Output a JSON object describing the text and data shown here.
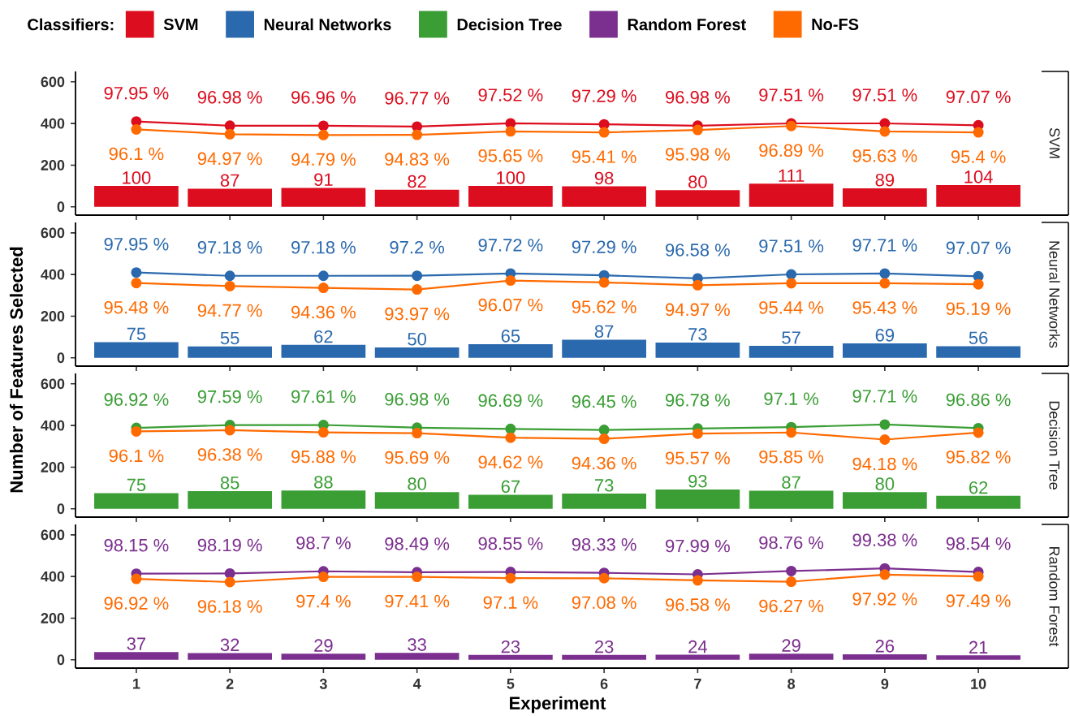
{
  "chart_data": [
    {
      "type": "bar",
      "title": "SVM",
      "ylabel": "Number of Features Selected",
      "legend": "top",
      "legend_title": "Classifiers:",
      "marker": "circle",
      "tick_labels": "y",
      "categories": [
        "1",
        "2",
        "3",
        "4",
        "5",
        "6",
        "7",
        "8",
        "9",
        "10"
      ],
      "ylim": [
        -40,
        650
      ],
      "yticks": [
        0,
        200,
        400,
        600
      ],
      "y2lim": [
        76,
        109.7
      ],
      "series": [
        {
          "name": "SVM",
          "color": "#dc0d1e",
          "values": [
            100,
            87,
            91,
            82,
            100,
            98,
            80,
            111,
            89,
            104
          ],
          "value_labels": [
            "100",
            "87",
            "91",
            "82",
            "100",
            "98",
            "80",
            "111",
            "89",
            "104"
          ]
        },
        {
          "type": "line",
          "axis": "y2",
          "color": "#dc0d1e",
          "values": [
            97.95,
            96.98,
            96.96,
            96.77,
            97.52,
            97.29,
            96.98,
            97.51,
            97.51,
            97.07
          ],
          "value_labels": [
            "97.95 %",
            "96.98 %",
            "96.96 %",
            "96.77 %",
            "97.52 %",
            "97.29 %",
            "96.98 %",
            "97.51 %",
            "97.51 %",
            "97.07 %"
          ]
        },
        {
          "type": "line",
          "axis": "y2",
          "name": "No-FS",
          "color": "#ff6a00",
          "values": [
            96.1,
            94.97,
            94.79,
            94.83,
            95.65,
            95.41,
            95.98,
            96.89,
            95.63,
            95.4
          ],
          "value_labels": [
            "96.1 %",
            "94.97 %",
            "94.79 %",
            "94.83 %",
            "95.65 %",
            "95.41 %",
            "95.98 %",
            "96.89 %",
            "95.63 %",
            "95.4 %"
          ]
        }
      ]
    },
    {
      "type": "bar",
      "title": "Neural Networks",
      "marker": "circle",
      "tick_labels": "y",
      "categories": [
        "1",
        "2",
        "3",
        "4",
        "5",
        "6",
        "7",
        "8",
        "9",
        "10"
      ],
      "ylim": [
        -40,
        650
      ],
      "yticks": [
        0,
        200,
        400,
        600
      ],
      "y2lim": [
        76,
        109.7
      ],
      "series": [
        {
          "name": "Neural Networks",
          "color": "#2a69ad",
          "values": [
            75,
            55,
            62,
            50,
            65,
            87,
            73,
            57,
            69,
            56
          ],
          "value_labels": [
            "75",
            "55",
            "62",
            "50",
            "65",
            "87",
            "73",
            "57",
            "69",
            "56"
          ]
        },
        {
          "type": "line",
          "axis": "y2",
          "color": "#2a69ad",
          "values": [
            97.95,
            97.18,
            97.18,
            97.2,
            97.72,
            97.29,
            96.58,
            97.51,
            97.71,
            97.07
          ],
          "value_labels": [
            "97.95 %",
            "97.18 %",
            "97.18 %",
            "97.2 %",
            "97.72 %",
            "97.29 %",
            "96.58 %",
            "97.51 %",
            "97.71 %",
            "97.07 %"
          ]
        },
        {
          "type": "line",
          "axis": "y2",
          "color": "#ff6a00",
          "values": [
            95.48,
            94.77,
            94.36,
            93.97,
            96.07,
            95.62,
            94.97,
            95.44,
            95.43,
            95.19
          ],
          "value_labels": [
            "95.48 %",
            "94.77 %",
            "94.36 %",
            "93.97 %",
            "96.07 %",
            "95.62 %",
            "94.97 %",
            "95.44 %",
            "95.43 %",
            "95.19 %"
          ]
        }
      ]
    },
    {
      "type": "bar",
      "title": "Decision Tree",
      "marker": "circle",
      "tick_labels": "y",
      "categories": [
        "1",
        "2",
        "3",
        "4",
        "5",
        "6",
        "7",
        "8",
        "9",
        "10"
      ],
      "ylim": [
        -40,
        650
      ],
      "yticks": [
        0,
        200,
        400,
        600
      ],
      "y2lim": [
        76,
        109.7
      ],
      "series": [
        {
          "name": "Decision Tree",
          "color": "#3a9e35",
          "values": [
            75,
            85,
            88,
            80,
            67,
            73,
            93,
            87,
            80,
            62
          ],
          "value_labels": [
            "75",
            "85",
            "88",
            "80",
            "67",
            "73",
            "93",
            "87",
            "80",
            "62"
          ]
        },
        {
          "type": "line",
          "axis": "y2",
          "color": "#3a9e35",
          "values": [
            96.92,
            97.59,
            97.61,
            96.98,
            96.69,
            96.45,
            96.78,
            97.1,
            97.71,
            96.86
          ],
          "value_labels": [
            "96.92 %",
            "97.59 %",
            "97.61 %",
            "96.98 %",
            "96.69 %",
            "96.45 %",
            "96.78 %",
            "97.1 %",
            "97.71 %",
            "96.86 %"
          ]
        },
        {
          "type": "line",
          "axis": "y2",
          "color": "#ff6a00",
          "values": [
            96.1,
            96.38,
            95.88,
            95.69,
            94.62,
            94.36,
            95.57,
            95.85,
            94.18,
            95.82
          ],
          "value_labels": [
            "96.1 %",
            "96.38 %",
            "95.88 %",
            "95.69 %",
            "94.62 %",
            "94.36 %",
            "95.57 %",
            "95.85 %",
            "94.18 %",
            "95.82 %"
          ]
        }
      ]
    },
    {
      "type": "bar",
      "title": "Random Forest",
      "xlabel": "Experiment",
      "marker": "circle",
      "categories": [
        "1",
        "2",
        "3",
        "4",
        "5",
        "6",
        "7",
        "8",
        "9",
        "10"
      ],
      "ylim": [
        -40,
        650
      ],
      "yticks": [
        0,
        200,
        400,
        600
      ],
      "y2lim": [
        76,
        109.7
      ],
      "series": [
        {
          "name": "Random Forest",
          "color": "#7b2f8e",
          "values": [
            37,
            32,
            29,
            33,
            23,
            23,
            24,
            29,
            26,
            21
          ],
          "value_labels": [
            "37",
            "32",
            "29",
            "33",
            "23",
            "23",
            "24",
            "29",
            "26",
            "21"
          ]
        },
        {
          "type": "line",
          "axis": "y2",
          "color": "#7b2f8e",
          "values": [
            98.15,
            98.19,
            98.7,
            98.49,
            98.55,
            98.33,
            97.99,
            98.76,
            99.38,
            98.54
          ],
          "value_labels": [
            "98.15 %",
            "98.19 %",
            "98.7 %",
            "98.49 %",
            "98.55 %",
            "98.33 %",
            "97.99 %",
            "98.76 %",
            "99.38 %",
            "98.54 %"
          ]
        },
        {
          "type": "line",
          "axis": "y2",
          "color": "#ff6a00",
          "values": [
            96.92,
            96.18,
            97.4,
            97.41,
            97.1,
            97.08,
            96.58,
            96.27,
            97.92,
            97.49
          ],
          "value_labels": [
            "96.92 %",
            "96.18 %",
            "97.4 %",
            "97.41 %",
            "97.1 %",
            "97.08 %",
            "96.58 %",
            "96.27 %",
            "97.92 %",
            "97.49 %"
          ]
        }
      ]
    }
  ]
}
